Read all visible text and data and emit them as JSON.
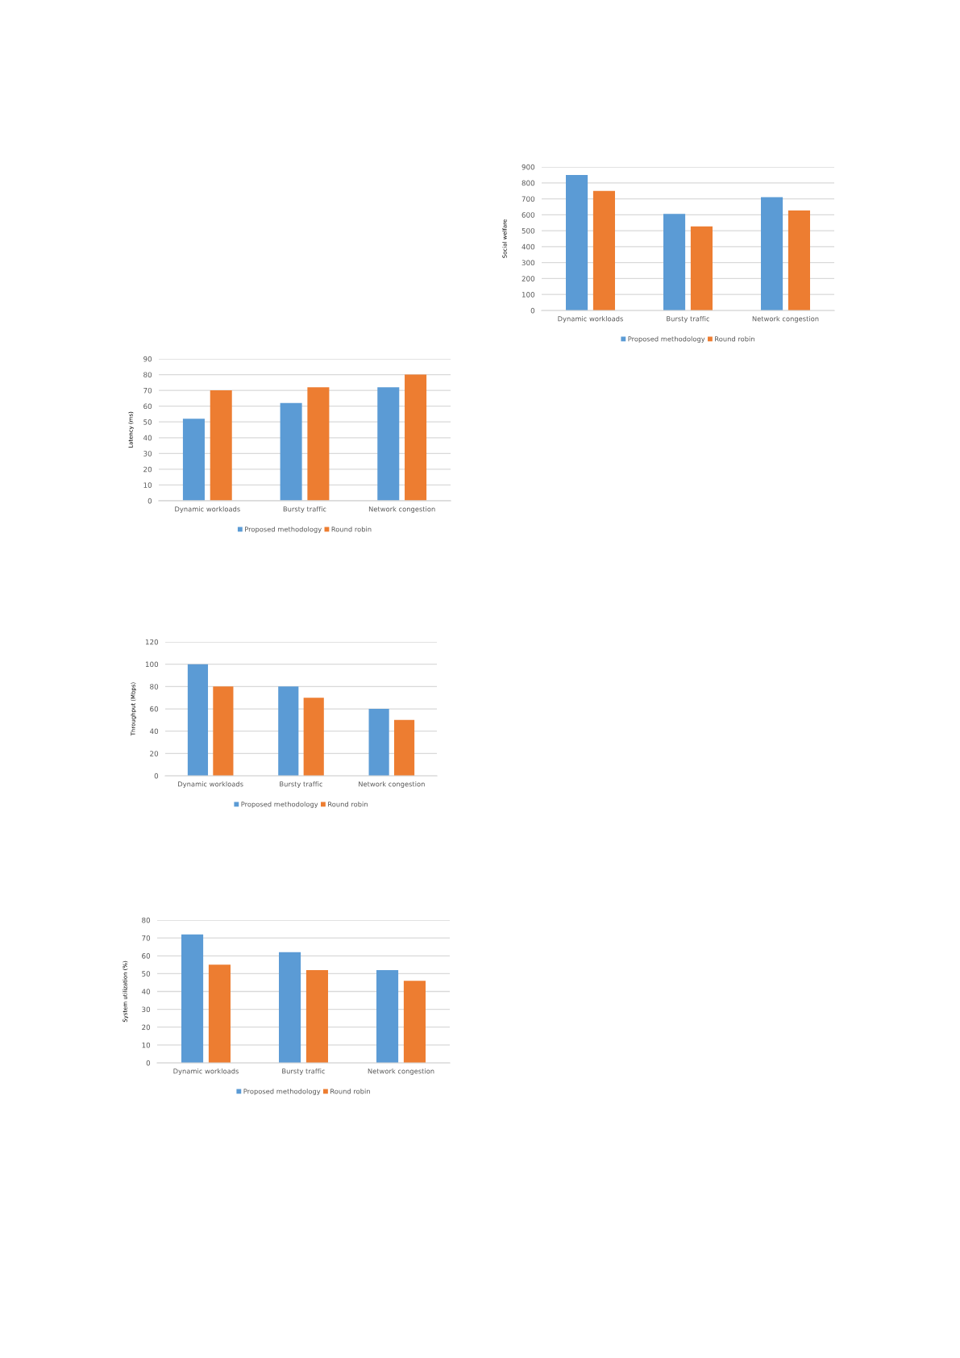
{
  "chart_data": [
    {
      "type": "bar",
      "ylabel": "Social welfare",
      "categories": [
        "Dynamic workloads",
        "Bursty traffic",
        "Network congestion"
      ],
      "series": [
        {
          "name": "Proposed methodology",
          "color": "#5b9bd5",
          "values": [
            850,
            605,
            710
          ]
        },
        {
          "name": "Round robin",
          "color": "#ed7d31",
          "values": [
            750,
            527,
            627
          ]
        }
      ],
      "ylim": [
        0,
        900
      ],
      "yticks": [
        0,
        100,
        200,
        300,
        400,
        500,
        600,
        700,
        800,
        900
      ],
      "grid": "y",
      "legend": "bottom"
    },
    {
      "type": "bar",
      "ylabel": "Latency (ms)",
      "categories": [
        "Dynamic workloads",
        "Bursty traffic",
        "Network congestion"
      ],
      "series": [
        {
          "name": "Proposed methodology",
          "color": "#5b9bd5",
          "values": [
            52,
            62,
            72
          ]
        },
        {
          "name": "Round robin",
          "color": "#ed7d31",
          "values": [
            70,
            72,
            80
          ]
        }
      ],
      "ylim": [
        0,
        90
      ],
      "yticks": [
        0,
        10,
        20,
        30,
        40,
        50,
        60,
        70,
        80,
        90
      ],
      "grid": "y",
      "legend": "bottom"
    },
    {
      "type": "bar",
      "ylabel": "Throughput (Mbps)",
      "categories": [
        "Dynamic workloads",
        "Bursty traffic",
        "Network congestion"
      ],
      "series": [
        {
          "name": "Proposed methodology",
          "color": "#5b9bd5",
          "values": [
            100,
            80,
            60
          ]
        },
        {
          "name": "Round robin",
          "color": "#ed7d31",
          "values": [
            80,
            70,
            50
          ]
        }
      ],
      "ylim": [
        0,
        120
      ],
      "yticks": [
        0,
        20,
        40,
        60,
        80,
        100,
        120
      ],
      "grid": "y",
      "legend": "bottom"
    },
    {
      "type": "bar",
      "ylabel": "System utilization (%)",
      "categories": [
        "Dynamic workloads",
        "Bursty traffic",
        "Network congestion"
      ],
      "series": [
        {
          "name": "Proposed methodology",
          "color": "#5b9bd5",
          "values": [
            72,
            62,
            52
          ]
        },
        {
          "name": "Round robin",
          "color": "#ed7d31",
          "values": [
            55,
            52,
            46
          ]
        }
      ],
      "ylim": [
        0,
        80
      ],
      "yticks": [
        0,
        10,
        20,
        30,
        40,
        50,
        60,
        70,
        80
      ],
      "grid": "y",
      "legend": "bottom"
    }
  ]
}
